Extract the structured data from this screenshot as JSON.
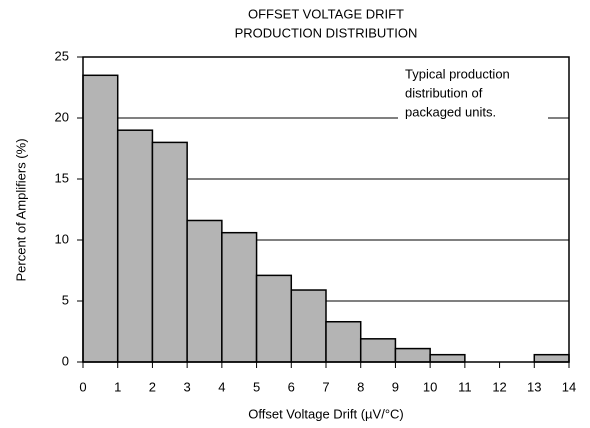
{
  "chart_data": {
    "type": "histogram",
    "title": [
      "OFFSET VOLTAGE DRIFT",
      "PRODUCTION DISTRIBUTION"
    ],
    "annotation": [
      "Typical production",
      "distribution of",
      "packaged units."
    ],
    "x_label": "Offset Voltage Drift (µV/°C)",
    "y_label": "Percent of Amplifiers (%)",
    "bins": [
      0,
      1,
      2,
      3,
      4,
      5,
      6,
      7,
      8,
      9,
      10,
      11,
      12,
      13,
      14
    ],
    "values": [
      23.5,
      19,
      18,
      11.6,
      10.6,
      7.1,
      5.9,
      3.3,
      1.9,
      1.1,
      0.6,
      0,
      0,
      0.6
    ],
    "color": "#b4b4b4",
    "xlim": [
      0,
      14
    ],
    "xticks": [
      0,
      1,
      2,
      3,
      4,
      5,
      6,
      7,
      8,
      9,
      10,
      11,
      12,
      13,
      14
    ],
    "ylim": [
      0,
      25
    ],
    "yticks": [
      0,
      5,
      10,
      15,
      20,
      25
    ],
    "grid": true
  }
}
